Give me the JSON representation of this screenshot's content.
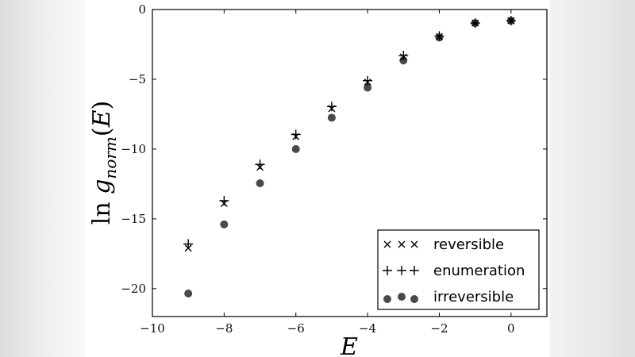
{
  "chart_data": {
    "type": "scatter",
    "xlabel": "E",
    "ylabel": "ln g_norm(E)",
    "xlim": [
      -10,
      1
    ],
    "ylim": [
      -22,
      0
    ],
    "xticks": [
      "−10",
      "−8",
      "−6",
      "−4",
      "−2",
      "0"
    ],
    "yticks": [
      "0",
      "−5",
      "−10",
      "−15",
      "−20"
    ],
    "grid": false,
    "legend_position": "bottom-right",
    "series": [
      {
        "name": "reversible",
        "marker": "x",
        "color": "#000000",
        "x": [
          -9,
          -8,
          -7,
          -6,
          -5,
          -4,
          -3,
          -2,
          -1,
          0
        ],
        "y": [
          -17.1,
          -13.9,
          -11.3,
          -9.1,
          -7.1,
          -5.2,
          -3.4,
          -1.95,
          -0.97,
          -0.8
        ]
      },
      {
        "name": "enumeration",
        "marker": "+",
        "color": "#000000",
        "x": [
          -9,
          -8,
          -7,
          -6,
          -5,
          -4,
          -3,
          -2,
          -1,
          0
        ],
        "y": [
          -16.8,
          -13.7,
          -11.1,
          -8.95,
          -6.95,
          -5.1,
          -3.3,
          -1.9,
          -0.97,
          -0.8
        ]
      },
      {
        "name": "irreversible",
        "marker": "o",
        "color": "#4a4a4a",
        "x": [
          -9,
          -8,
          -7,
          -6,
          -5,
          -4,
          -3,
          -2,
          -1,
          0
        ],
        "y": [
          -20.35,
          -15.4,
          -12.45,
          -10.0,
          -7.75,
          -5.6,
          -3.65,
          -2.0,
          -0.97,
          -0.8
        ]
      }
    ]
  }
}
